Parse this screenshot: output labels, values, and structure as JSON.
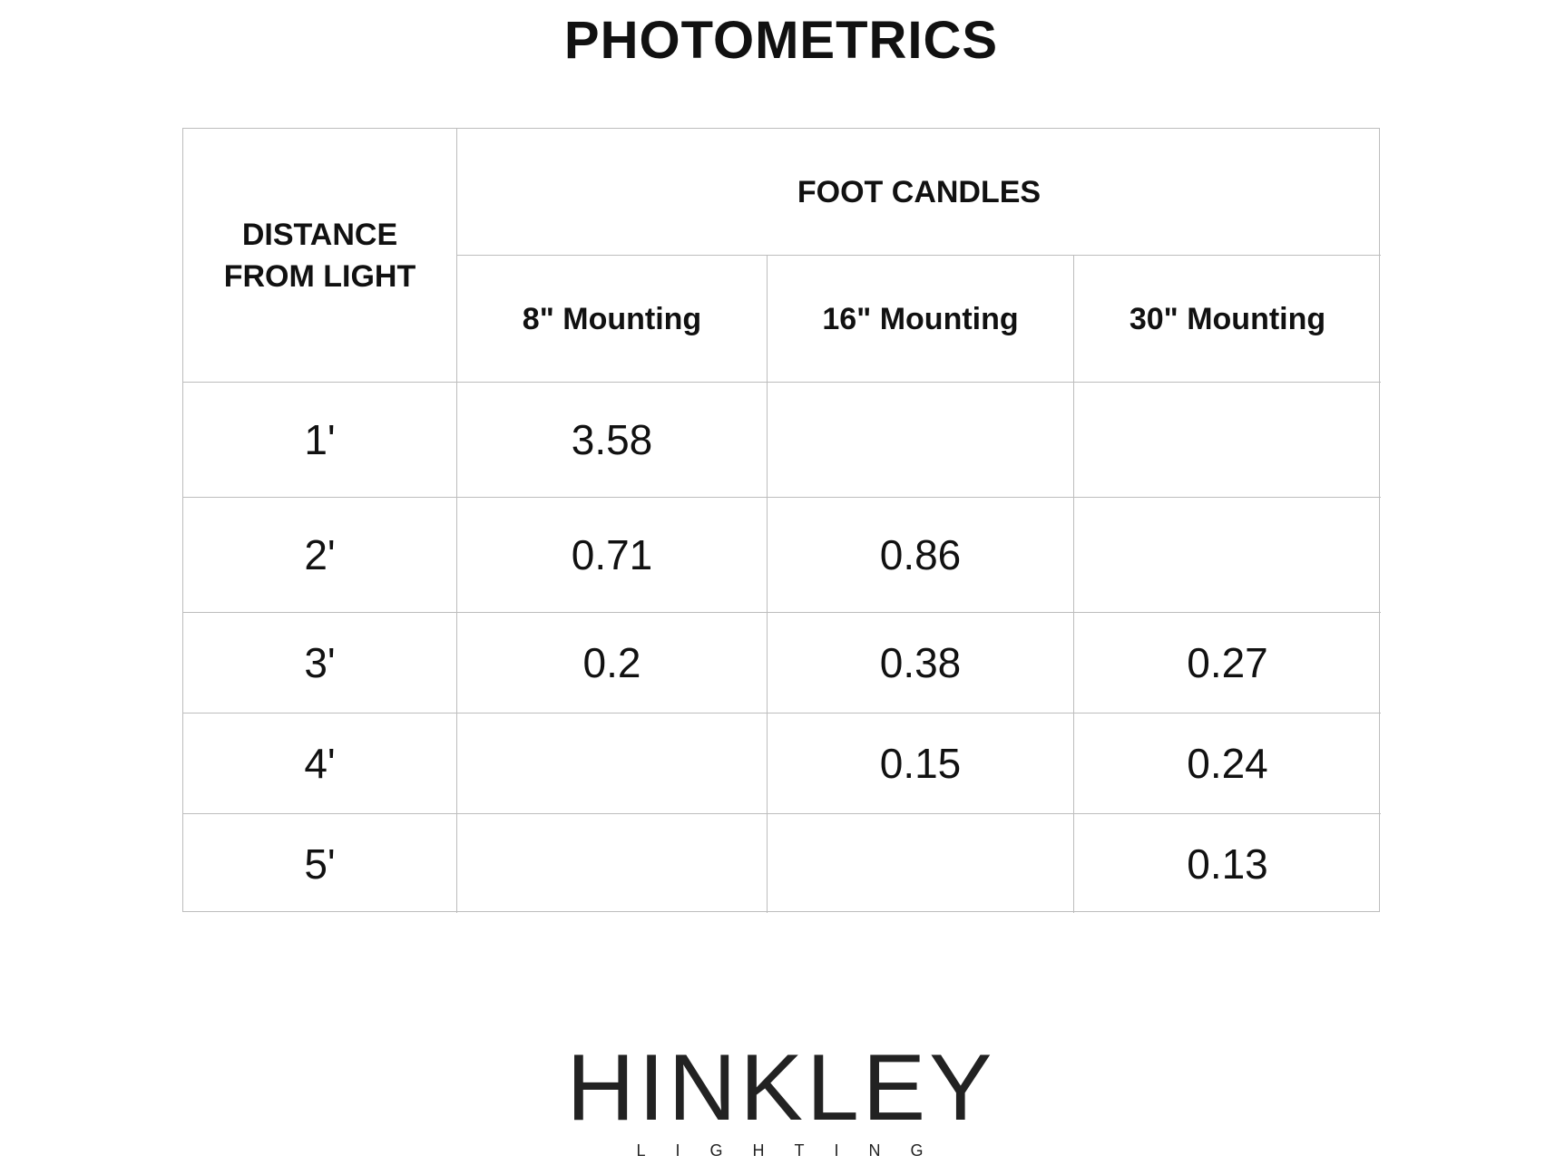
{
  "title": "PHOTOMETRICS",
  "table": {
    "row_header": "DISTANCE FROM LIGHT",
    "group_header": "FOOT CANDLES",
    "columns": [
      "8\" Mounting",
      "16\" Mounting",
      "30\" Mounting"
    ],
    "rows": [
      {
        "distance": "1'",
        "values": [
          "3.58",
          "",
          ""
        ]
      },
      {
        "distance": "2'",
        "values": [
          "0.71",
          "0.86",
          ""
        ]
      },
      {
        "distance": "3'",
        "values": [
          "0.2",
          "0.38",
          "0.27"
        ]
      },
      {
        "distance": "4'",
        "values": [
          "",
          "0.15",
          "0.24"
        ]
      },
      {
        "distance": "5'",
        "values": [
          "",
          "",
          "0.13"
        ]
      }
    ]
  },
  "logo": {
    "name": "HINKLEY",
    "sub": "LIGHTING"
  }
}
